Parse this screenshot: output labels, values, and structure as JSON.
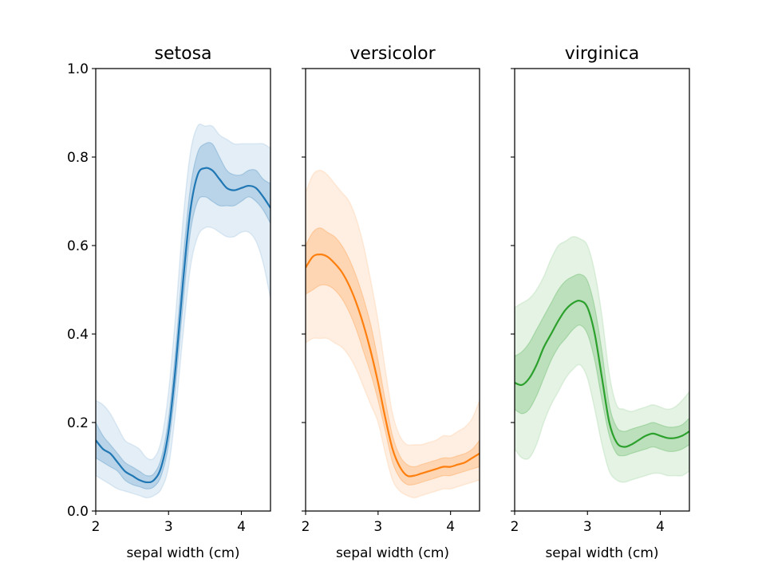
{
  "chart_data": [
    {
      "type": "line",
      "title": "setosa",
      "xlabel": "sepal width (cm)",
      "ylabel": "",
      "xlim": [
        2.0,
        4.4
      ],
      "ylim": [
        0.0,
        1.0
      ],
      "xticks": [
        "2",
        "3",
        "4"
      ],
      "yticks": [
        "0.0",
        "0.2",
        "0.4",
        "0.6",
        "0.8",
        "1.0"
      ],
      "show_ytick_labels": true,
      "color": "#1f77b4",
      "x": [
        2.0,
        2.1,
        2.2,
        2.3,
        2.4,
        2.5,
        2.6,
        2.7,
        2.8,
        2.9,
        3.0,
        3.1,
        3.2,
        3.3,
        3.4,
        3.5,
        3.6,
        3.7,
        3.8,
        3.9,
        4.0,
        4.1,
        4.2,
        4.3,
        4.4
      ],
      "mean": [
        0.16,
        0.14,
        0.13,
        0.11,
        0.09,
        0.08,
        0.07,
        0.065,
        0.07,
        0.1,
        0.18,
        0.33,
        0.52,
        0.68,
        0.76,
        0.775,
        0.77,
        0.75,
        0.73,
        0.725,
        0.73,
        0.735,
        0.73,
        0.71,
        0.685
      ],
      "inner_lo": [
        0.12,
        0.11,
        0.1,
        0.09,
        0.07,
        0.06,
        0.055,
        0.05,
        0.055,
        0.08,
        0.15,
        0.29,
        0.47,
        0.63,
        0.7,
        0.71,
        0.7,
        0.69,
        0.69,
        0.69,
        0.7,
        0.71,
        0.7,
        0.68,
        0.65
      ],
      "inner_hi": [
        0.2,
        0.17,
        0.15,
        0.13,
        0.11,
        0.1,
        0.09,
        0.08,
        0.085,
        0.12,
        0.21,
        0.37,
        0.57,
        0.73,
        0.81,
        0.83,
        0.83,
        0.8,
        0.77,
        0.76,
        0.76,
        0.77,
        0.77,
        0.75,
        0.74
      ],
      "outer_lo": [
        0.08,
        0.07,
        0.06,
        0.05,
        0.045,
        0.04,
        0.035,
        0.03,
        0.035,
        0.05,
        0.1,
        0.23,
        0.4,
        0.55,
        0.62,
        0.64,
        0.64,
        0.63,
        0.62,
        0.62,
        0.63,
        0.63,
        0.61,
        0.56,
        0.48
      ],
      "outer_hi": [
        0.25,
        0.24,
        0.22,
        0.19,
        0.16,
        0.15,
        0.14,
        0.12,
        0.12,
        0.16,
        0.27,
        0.45,
        0.66,
        0.81,
        0.87,
        0.87,
        0.87,
        0.85,
        0.84,
        0.83,
        0.83,
        0.83,
        0.83,
        0.83,
        0.82
      ]
    },
    {
      "type": "line",
      "title": "versicolor",
      "xlabel": "sepal width (cm)",
      "ylabel": "",
      "xlim": [
        2.0,
        4.4
      ],
      "ylim": [
        0.0,
        1.0
      ],
      "xticks": [
        "2",
        "3",
        "4"
      ],
      "yticks": [
        "0.0",
        "0.2",
        "0.4",
        "0.6",
        "0.8",
        "1.0"
      ],
      "show_ytick_labels": false,
      "color": "#ff7f0e",
      "x": [
        2.0,
        2.1,
        2.2,
        2.3,
        2.4,
        2.5,
        2.6,
        2.7,
        2.8,
        2.9,
        3.0,
        3.1,
        3.2,
        3.3,
        3.4,
        3.5,
        3.6,
        3.7,
        3.8,
        3.9,
        4.0,
        4.1,
        4.2,
        4.3,
        4.4
      ],
      "mean": [
        0.55,
        0.575,
        0.58,
        0.575,
        0.56,
        0.54,
        0.51,
        0.47,
        0.42,
        0.36,
        0.29,
        0.21,
        0.14,
        0.1,
        0.08,
        0.08,
        0.085,
        0.09,
        0.095,
        0.1,
        0.1,
        0.105,
        0.11,
        0.12,
        0.13
      ],
      "inner_lo": [
        0.49,
        0.5,
        0.51,
        0.51,
        0.5,
        0.48,
        0.45,
        0.41,
        0.36,
        0.31,
        0.25,
        0.18,
        0.11,
        0.075,
        0.06,
        0.06,
        0.065,
        0.07,
        0.075,
        0.08,
        0.08,
        0.085,
        0.09,
        0.095,
        0.1
      ],
      "inner_hi": [
        0.6,
        0.63,
        0.64,
        0.63,
        0.62,
        0.6,
        0.57,
        0.53,
        0.48,
        0.42,
        0.34,
        0.25,
        0.17,
        0.125,
        0.105,
        0.1,
        0.105,
        0.11,
        0.115,
        0.12,
        0.12,
        0.125,
        0.13,
        0.14,
        0.16
      ],
      "outer_lo": [
        0.38,
        0.39,
        0.39,
        0.39,
        0.38,
        0.37,
        0.35,
        0.32,
        0.28,
        0.24,
        0.2,
        0.13,
        0.07,
        0.045,
        0.035,
        0.03,
        0.035,
        0.04,
        0.045,
        0.05,
        0.05,
        0.055,
        0.06,
        0.065,
        0.07
      ],
      "outer_hi": [
        0.72,
        0.76,
        0.77,
        0.76,
        0.74,
        0.72,
        0.7,
        0.66,
        0.6,
        0.52,
        0.43,
        0.32,
        0.22,
        0.17,
        0.15,
        0.15,
        0.15,
        0.155,
        0.16,
        0.17,
        0.17,
        0.18,
        0.19,
        0.21,
        0.25
      ]
    },
    {
      "type": "line",
      "title": "virginica",
      "xlabel": "sepal width (cm)",
      "ylabel": "",
      "xlim": [
        2.0,
        4.4
      ],
      "ylim": [
        0.0,
        1.0
      ],
      "xticks": [
        "2",
        "3",
        "4"
      ],
      "yticks": [
        "0.0",
        "0.2",
        "0.4",
        "0.6",
        "0.8",
        "1.0"
      ],
      "show_ytick_labels": false,
      "color": "#2ca02c",
      "x": [
        2.0,
        2.1,
        2.2,
        2.3,
        2.4,
        2.5,
        2.6,
        2.7,
        2.8,
        2.9,
        3.0,
        3.1,
        3.2,
        3.3,
        3.4,
        3.5,
        3.6,
        3.7,
        3.8,
        3.9,
        4.0,
        4.1,
        4.2,
        4.3,
        4.4
      ],
      "mean": [
        0.29,
        0.285,
        0.3,
        0.33,
        0.37,
        0.4,
        0.43,
        0.455,
        0.47,
        0.475,
        0.46,
        0.4,
        0.3,
        0.2,
        0.155,
        0.145,
        0.15,
        0.16,
        0.17,
        0.175,
        0.17,
        0.165,
        0.165,
        0.17,
        0.18
      ],
      "inner_lo": [
        0.23,
        0.22,
        0.23,
        0.26,
        0.3,
        0.34,
        0.37,
        0.39,
        0.41,
        0.42,
        0.4,
        0.34,
        0.25,
        0.17,
        0.13,
        0.125,
        0.13,
        0.135,
        0.14,
        0.145,
        0.14,
        0.135,
        0.135,
        0.14,
        0.15
      ],
      "inner_hi": [
        0.35,
        0.36,
        0.38,
        0.41,
        0.44,
        0.47,
        0.5,
        0.52,
        0.53,
        0.535,
        0.52,
        0.46,
        0.36,
        0.24,
        0.19,
        0.18,
        0.185,
        0.19,
        0.195,
        0.2,
        0.195,
        0.19,
        0.19,
        0.195,
        0.21
      ],
      "outer_lo": [
        0.14,
        0.12,
        0.12,
        0.15,
        0.2,
        0.24,
        0.27,
        0.3,
        0.32,
        0.33,
        0.3,
        0.23,
        0.15,
        0.09,
        0.07,
        0.065,
        0.07,
        0.075,
        0.08,
        0.085,
        0.085,
        0.08,
        0.08,
        0.08,
        0.09
      ],
      "outer_hi": [
        0.46,
        0.47,
        0.48,
        0.5,
        0.53,
        0.57,
        0.6,
        0.61,
        0.62,
        0.615,
        0.6,
        0.54,
        0.44,
        0.31,
        0.24,
        0.23,
        0.225,
        0.23,
        0.235,
        0.24,
        0.235,
        0.23,
        0.235,
        0.25,
        0.27
      ]
    }
  ]
}
